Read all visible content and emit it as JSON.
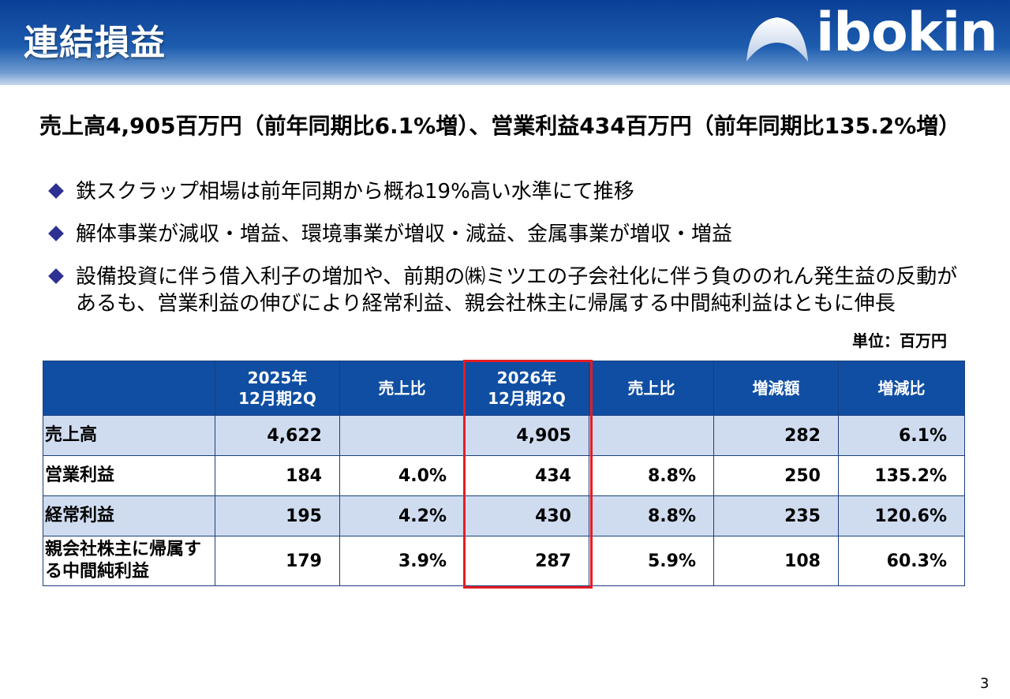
{
  "slide": {
    "title": "連結損益",
    "page_number": "3"
  },
  "logo": {
    "text": "ibokin",
    "icon": "mountain-logo-icon"
  },
  "headline": "売上高4,905百万円（前年同期比6.1%増）、営業利益434百万円（前年同期比135.2%増）",
  "bullets": [
    "鉄スクラップ相場は前年同期から概ね19%高い水準にて推移",
    "解体事業が減収・増益、環境事業が増収・減益、金属事業が増収・増益",
    "設備投資に伴う借入利子の増加や、前期の㈱ミツエの子会社化に伴う負ののれん発生益の反動があるも、営業利益の伸びにより経常利益、親会社株主に帰属する中間純利益はともに伸長"
  ],
  "unit_label": "単位：百万円",
  "table": {
    "headers": [
      "",
      "2025年\n12月期2Q",
      "売上比",
      "2026年\n12月期2Q",
      "売上比",
      "増減額",
      "増減比"
    ],
    "rows": [
      [
        "売上高",
        "4,622",
        "",
        "4,905",
        "",
        "282",
        "6.1%"
      ],
      [
        "営業利益",
        "184",
        "4.0%",
        "434",
        "8.8%",
        "250",
        "135.2%"
      ],
      [
        "経常利益",
        "195",
        "4.2%",
        "430",
        "8.8%",
        "235",
        "120.6%"
      ],
      [
        "親会社株主に帰属する中間純利益",
        "179",
        "3.9%",
        "287",
        "5.9%",
        "108",
        "60.3%"
      ]
    ],
    "highlighted_column": "2026年12月期2Q"
  },
  "colors": {
    "header_blue": "#0f4ea3",
    "row_tint": "#cfdcf0",
    "highlight_red": "#e51c23",
    "bullet_navy": "#2e3192"
  }
}
